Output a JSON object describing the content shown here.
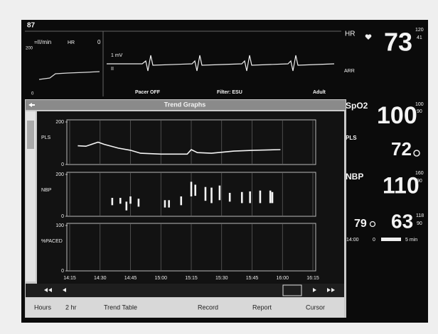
{
  "header": {
    "bed": "87"
  },
  "waveform_panel": {
    "label": "=II/min",
    "hr_label": "HR",
    "hr_value": "0",
    "scale_top": "200",
    "scale_bottom": "0"
  },
  "ecg": {
    "gain": "1 mV",
    "lead": "II",
    "arr": "ARR",
    "pacer": "Pacer OFF",
    "filter": "Filter: ESU",
    "mode": "Adult"
  },
  "vitals": {
    "hr": {
      "label": "HR",
      "value": "73",
      "high": "120",
      "low": "41"
    },
    "spo2": {
      "label": "SpO2",
      "value": "100",
      "high": "100",
      "low": "90"
    },
    "pls": {
      "label": "PLS",
      "value": "72"
    },
    "nbp": {
      "label": "NBP",
      "value": "110",
      "high": "160",
      "low": "90"
    },
    "nbp2": {
      "left": "79",
      "value": "63",
      "high": "118",
      "low": "90"
    },
    "timer": {
      "time": "14:00",
      "value": "0",
      "interval": "5 min"
    }
  },
  "trend": {
    "title": "Trend Graphs"
  },
  "bottom_bar": {
    "hours_label": "Hours",
    "hours_value": "2 hr",
    "table": "Trend Table",
    "record": "Record",
    "report": "Report",
    "cursor": "Cursor"
  },
  "chart_data": [
    {
      "type": "line",
      "ylabel": "PLS",
      "ylim": [
        0,
        200
      ],
      "yticks": [
        0,
        200
      ],
      "xlim": [
        "14:15",
        "16:15"
      ],
      "x": [
        "14:19",
        "14:23",
        "14:29",
        "14:32",
        "14:39",
        "14:45",
        "14:50",
        "15:00",
        "15:13",
        "15:15",
        "15:18",
        "15:25",
        "15:36",
        "15:46",
        "15:59"
      ],
      "values": [
        88,
        86,
        105,
        95,
        77,
        67,
        53,
        49,
        49,
        70,
        56,
        53,
        63,
        67,
        70
      ],
      "color": "#f4f4f4"
    },
    {
      "type": "range",
      "ylabel": "NBP",
      "ylim": [
        0,
        200
      ],
      "yticks": [
        0,
        200
      ],
      "xlim": [
        "14:15",
        "16:15"
      ],
      "x": [
        "14:36",
        "14:40",
        "14:43",
        "14:45",
        "14:49",
        "15:02",
        "15:04",
        "15:10",
        "15:15",
        "15:17",
        "15:22",
        "15:25",
        "15:29",
        "15:34",
        "15:40",
        "15:44",
        "15:49",
        "15:54",
        "15:55"
      ],
      "high": [
        88,
        88,
        70,
        95,
        84,
        77,
        77,
        95,
        165,
        151,
        140,
        137,
        147,
        112,
        116,
        119,
        123,
        123,
        116
      ],
      "low": [
        53,
        60,
        28,
        60,
        46,
        42,
        42,
        53,
        95,
        98,
        74,
        63,
        77,
        70,
        63,
        63,
        63,
        63,
        63
      ],
      "color": "#f4f4f4"
    },
    {
      "type": "line",
      "ylabel": "%PACED",
      "ylim": [
        0,
        100
      ],
      "yticks": [
        0,
        100
      ],
      "xlim": [
        "14:15",
        "16:15"
      ],
      "xticks": [
        "14:15",
        "14:30",
        "14:45",
        "15:00",
        "15:15",
        "15:30",
        "15:45",
        "16:00",
        "16:15"
      ]
    }
  ]
}
